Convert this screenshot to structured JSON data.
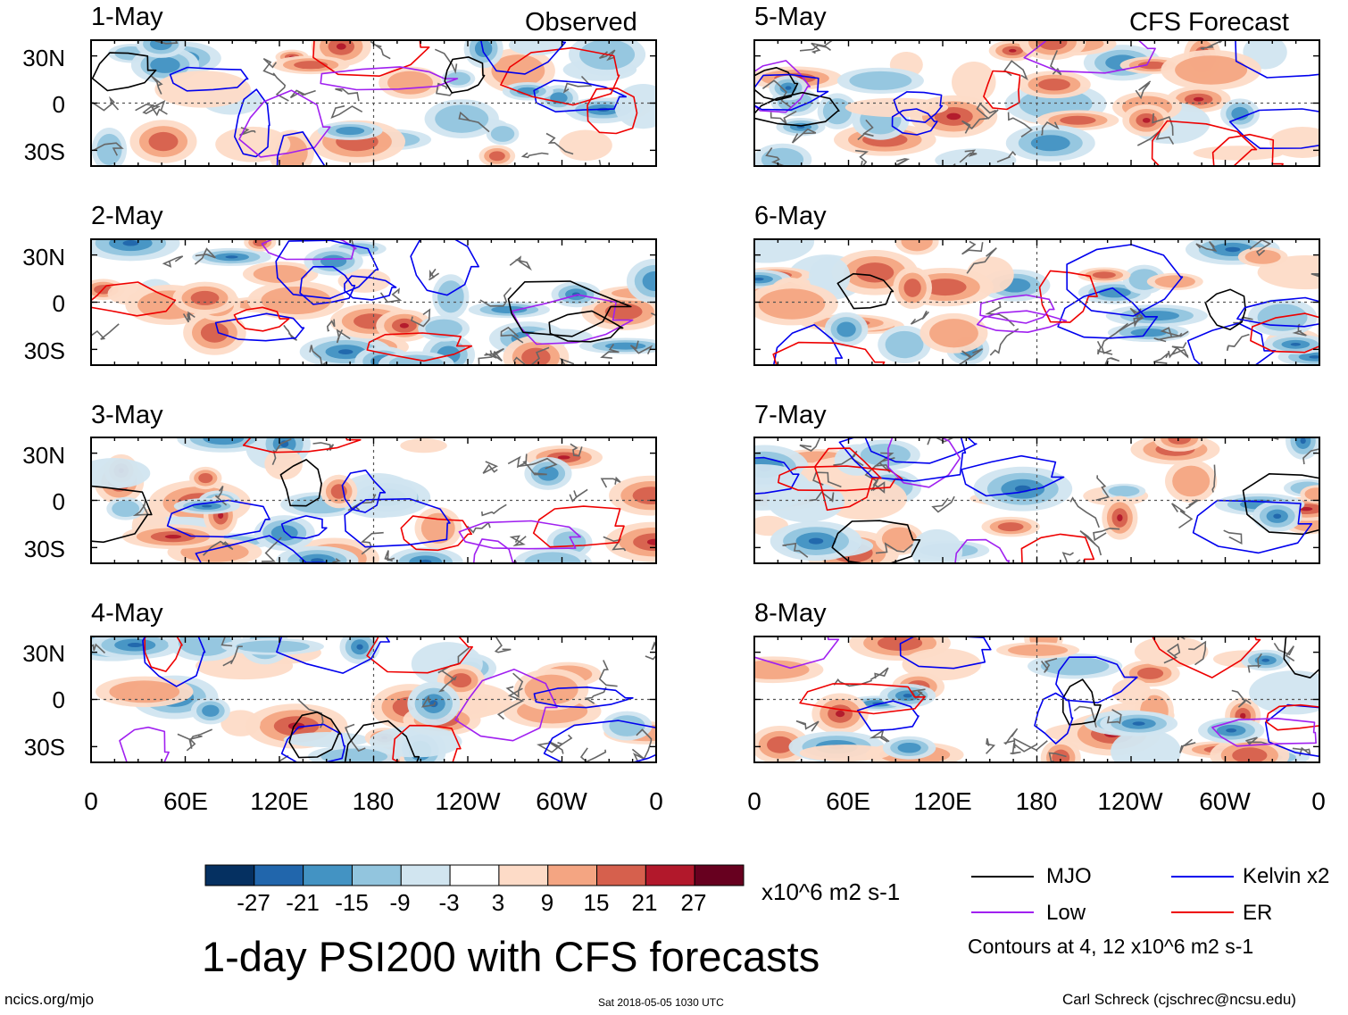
{
  "chart_data": {
    "type": "heatmap",
    "title": "1-day PSI200 with CFS forecasts",
    "variable": "PSI200",
    "columns": [
      {
        "label": "Observed",
        "panels": [
          "1-May",
          "2-May",
          "3-May",
          "4-May"
        ]
      },
      {
        "label": "CFS Forecast",
        "panels": [
          "5-May",
          "6-May",
          "7-May",
          "8-May"
        ]
      }
    ],
    "y_ticks": [
      "30N",
      "0",
      "30S"
    ],
    "x_ticks": [
      "0",
      "60E",
      "120E",
      "180",
      "120W",
      "60W",
      "0"
    ],
    "colorbar": {
      "units": "x10^6 m2 s-1",
      "ticks": [
        "-27",
        "-21",
        "-15",
        "-9",
        "-3",
        "3",
        "9",
        "15",
        "21",
        "27"
      ],
      "colors": [
        "#053061",
        "#2166ac",
        "#4393c3",
        "#92c5de",
        "#d1e5f0",
        "#ffffff",
        "#fddbc7",
        "#f4a582",
        "#d6604d",
        "#b2182b",
        "#67001f"
      ]
    },
    "legend": [
      {
        "label": "MJO",
        "color": "#000000"
      },
      {
        "label": "Kelvin x2",
        "color": "#0000ee"
      },
      {
        "label": "Low",
        "color": "#a020f0"
      },
      {
        "label": "ER",
        "color": "#ee0000"
      }
    ],
    "contour_note": "Contours at 4, 12 x10^6 m2 s-1"
  },
  "footer": {
    "left": "ncics.org/mjo",
    "center": "Sat 2018-05-05 1030 UTC",
    "right": "Carl Schreck (cjschrec@ncsu.edu)"
  }
}
